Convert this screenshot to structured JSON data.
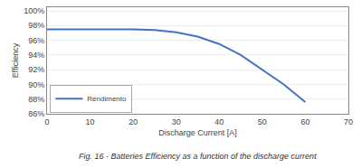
{
  "chart_data": {
    "type": "line",
    "x": [
      0,
      17,
      20,
      25,
      30,
      35,
      40,
      45,
      50,
      55,
      60
    ],
    "series": [
      {
        "name": "Rendimento",
        "color": "#4472C4",
        "values": [
          0.975,
          0.975,
          0.975,
          0.974,
          0.971,
          0.965,
          0.955,
          0.94,
          0.92,
          0.9,
          0.876
        ]
      }
    ],
    "x_label": "Discharge Current [A]",
    "y_label": "Efficiency",
    "annotations": [
      "Fig. 16 - Batteries Efficiency as a function of the discharge current"
    ],
    "xlim": [
      0,
      70
    ],
    "ylim": [
      0.86,
      1.005
    ],
    "xticks": [
      0,
      10,
      20,
      30,
      40,
      50,
      60,
      70
    ],
    "yticks": [
      {
        "value": 0.86,
        "label": "86%"
      },
      {
        "value": 0.88,
        "label": "88%"
      },
      {
        "value": 0.9,
        "label": "90%"
      },
      {
        "value": 0.92,
        "label": "92%"
      },
      {
        "value": 0.94,
        "label": "94%"
      },
      {
        "value": 0.96,
        "label": "96%"
      },
      {
        "value": 0.98,
        "label": "98%"
      },
      {
        "value": 1.0,
        "label": "100%"
      }
    ],
    "grid": "y",
    "legend": "lower left"
  }
}
